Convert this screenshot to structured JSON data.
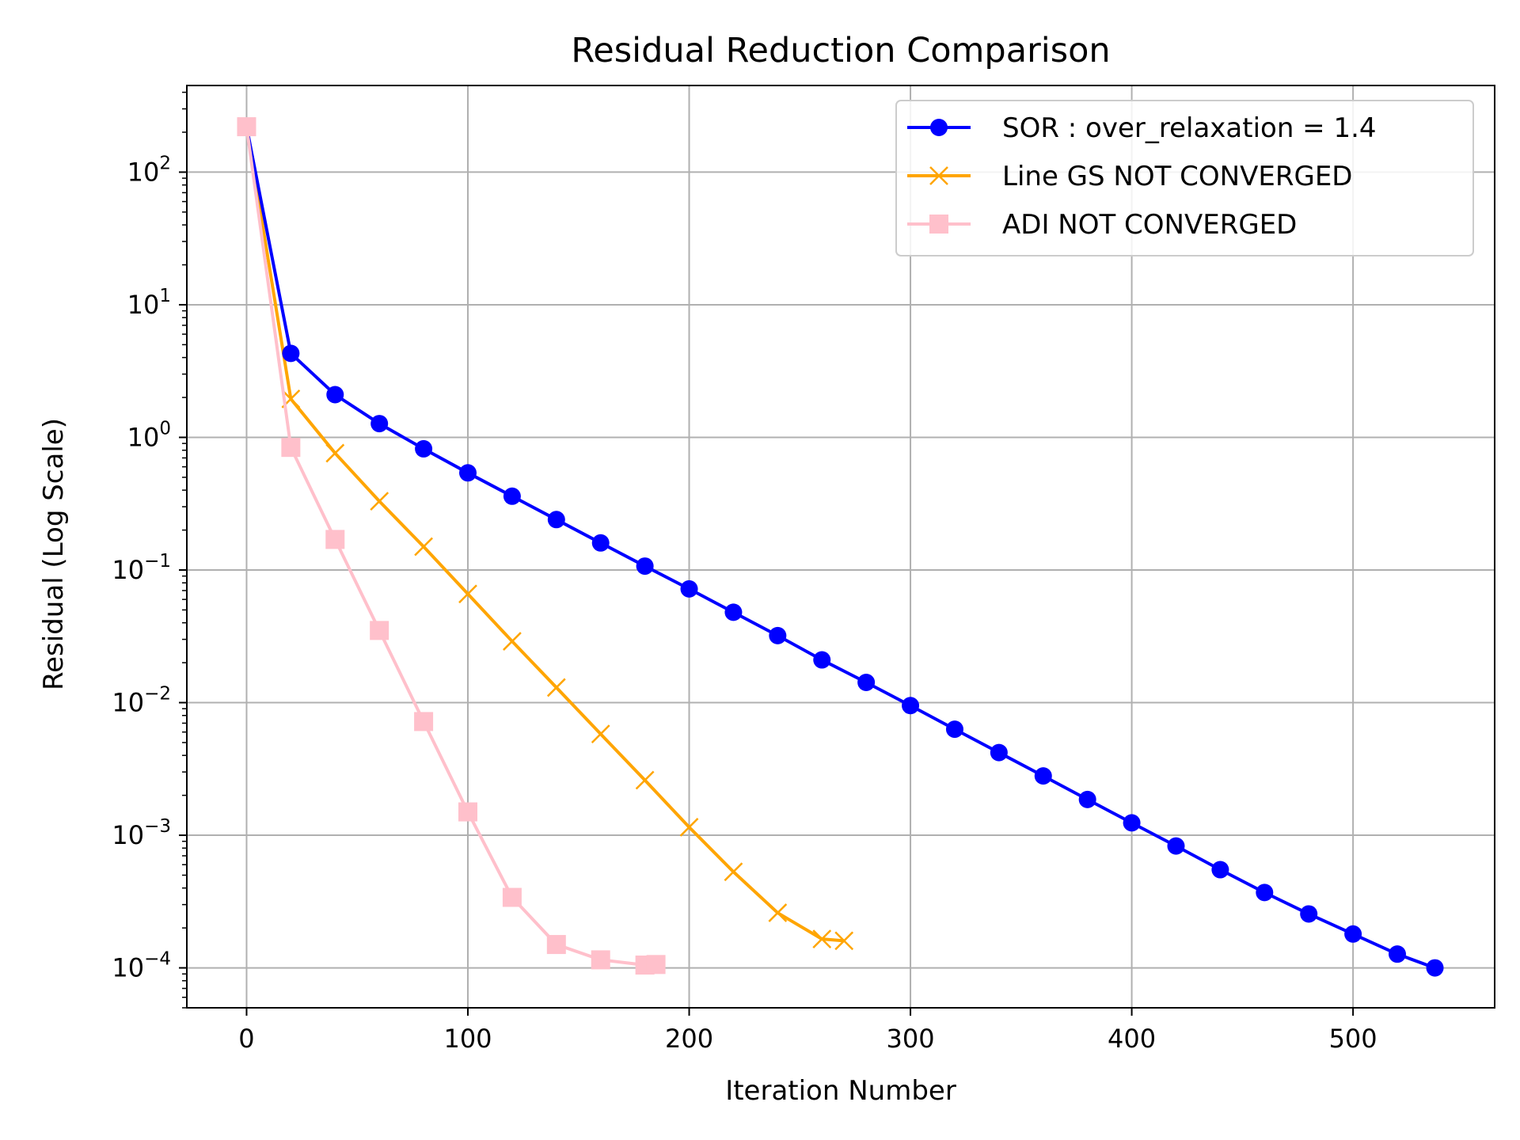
{
  "chart_data": {
    "type": "line",
    "title": "Residual Reduction Comparison",
    "xlabel": "Iteration Number",
    "ylabel": "Residual (Log Scale)",
    "xlim": [
      -27,
      564
    ],
    "ylim": [
      5e-05,
      450
    ],
    "yscale": "log",
    "grid": true,
    "legend_position": "top-right",
    "x_ticks": [
      0,
      100,
      200,
      300,
      400,
      500
    ],
    "x_tick_labels": [
      "0",
      "100",
      "200",
      "300",
      "400",
      "500"
    ],
    "y_ticks": [
      0.0001,
      0.001,
      0.01,
      0.1,
      1,
      10,
      100
    ],
    "y_tick_labels": [
      {
        "base": "10",
        "exp": "−4"
      },
      {
        "base": "10",
        "exp": "−3"
      },
      {
        "base": "10",
        "exp": "−2"
      },
      {
        "base": "10",
        "exp": "−1"
      },
      {
        "base": "10",
        "exp": "0"
      },
      {
        "base": "10",
        "exp": "1"
      },
      {
        "base": "10",
        "exp": "2"
      }
    ],
    "series": [
      {
        "name": "SOR : over_relaxation = 1.4",
        "color": "#0000ff",
        "marker": "circle",
        "x": [
          0,
          20,
          40,
          60,
          80,
          100,
          120,
          140,
          160,
          180,
          200,
          220,
          240,
          260,
          280,
          300,
          320,
          340,
          360,
          380,
          400,
          420,
          440,
          460,
          480,
          500,
          520,
          537
        ],
        "y": [
          220,
          4.3,
          2.1,
          1.27,
          0.82,
          0.54,
          0.36,
          0.24,
          0.16,
          0.107,
          0.072,
          0.048,
          0.032,
          0.021,
          0.0142,
          0.0095,
          0.0063,
          0.0042,
          0.0028,
          0.00186,
          0.00124,
          0.00083,
          0.00055,
          0.00037,
          0.000255,
          0.00018,
          0.000127,
          0.0001
        ]
      },
      {
        "name": "Line GS NOT CONVERGED",
        "color": "#ffa500",
        "marker": "x",
        "x": [
          0,
          20,
          40,
          60,
          80,
          100,
          120,
          140,
          160,
          180,
          200,
          220,
          240,
          260,
          270
        ],
        "y": [
          220,
          1.95,
          0.76,
          0.33,
          0.15,
          0.066,
          0.029,
          0.013,
          0.0058,
          0.0026,
          0.00115,
          0.00053,
          0.00026,
          0.000165,
          0.00016
        ]
      },
      {
        "name": "ADI NOT CONVERGED",
        "color": "#ffc0cb",
        "marker": "square",
        "x": [
          0,
          20,
          40,
          60,
          80,
          100,
          120,
          140,
          160,
          180,
          185
        ],
        "y": [
          220,
          0.84,
          0.17,
          0.035,
          0.0072,
          0.0015,
          0.00034,
          0.00015,
          0.000115,
          0.000105,
          0.000106
        ]
      }
    ]
  }
}
